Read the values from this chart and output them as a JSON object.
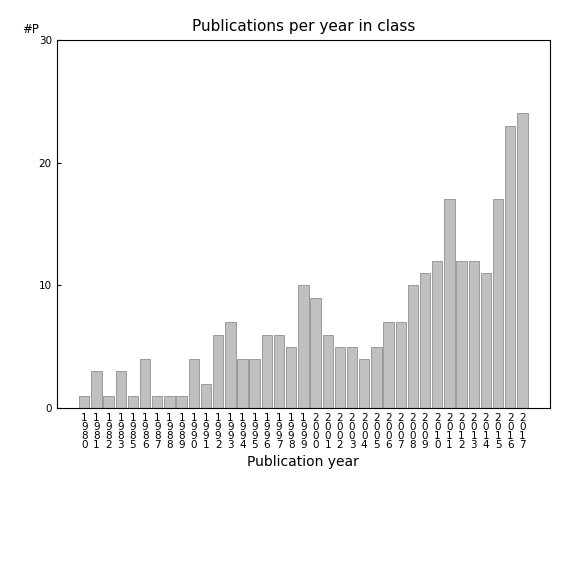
{
  "categories": [
    "1\n9\n8\n0",
    "1\n9\n8\n1",
    "1\n9\n8\n2",
    "1\n9\n8\n3",
    "1\n9\n8\n5",
    "1\n9\n8\n6",
    "1\n9\n8\n7",
    "1\n9\n8\n8",
    "1\n9\n8\n9",
    "1\n9\n9\n0",
    "1\n9\n9\n1",
    "1\n9\n9\n2",
    "1\n9\n9\n3",
    "1\n9\n9\n4",
    "1\n9\n9\n5",
    "1\n9\n9\n6",
    "1\n9\n9\n7",
    "1\n9\n9\n8",
    "1\n9\n9\n9",
    "2\n0\n0\n0",
    "2\n0\n0\n1",
    "2\n0\n0\n2",
    "2\n0\n0\n3",
    "2\n0\n0\n4",
    "2\n0\n0\n5",
    "2\n0\n0\n6",
    "2\n0\n0\n7",
    "2\n0\n0\n8",
    "2\n0\n0\n9",
    "2\n0\n1\n0",
    "2\n0\n1\n1",
    "2\n0\n1\n2",
    "2\n0\n1\n3",
    "2\n0\n1\n4",
    "2\n0\n1\n5",
    "2\n0\n1\n6",
    "2\n0\n1\n7"
  ],
  "values": [
    1,
    3,
    1,
    3,
    1,
    4,
    1,
    1,
    1,
    4,
    2,
    6,
    7,
    4,
    4,
    6,
    6,
    5,
    10,
    9,
    6,
    5,
    5,
    4,
    5,
    7,
    7,
    10,
    11,
    12,
    17,
    12,
    12,
    11,
    17,
    23,
    24
  ],
  "bar_color": "#c0c0c0",
  "bar_edgecolor": "#808080",
  "title": "Publications per year in class",
  "xlabel": "Publication year",
  "ylabel_text": "#P",
  "ylim": [
    0,
    30
  ],
  "yticks": [
    0,
    10,
    20,
    30
  ],
  "background_color": "#ffffff",
  "title_fontsize": 11,
  "label_fontsize": 10,
  "tick_fontsize": 7.5
}
